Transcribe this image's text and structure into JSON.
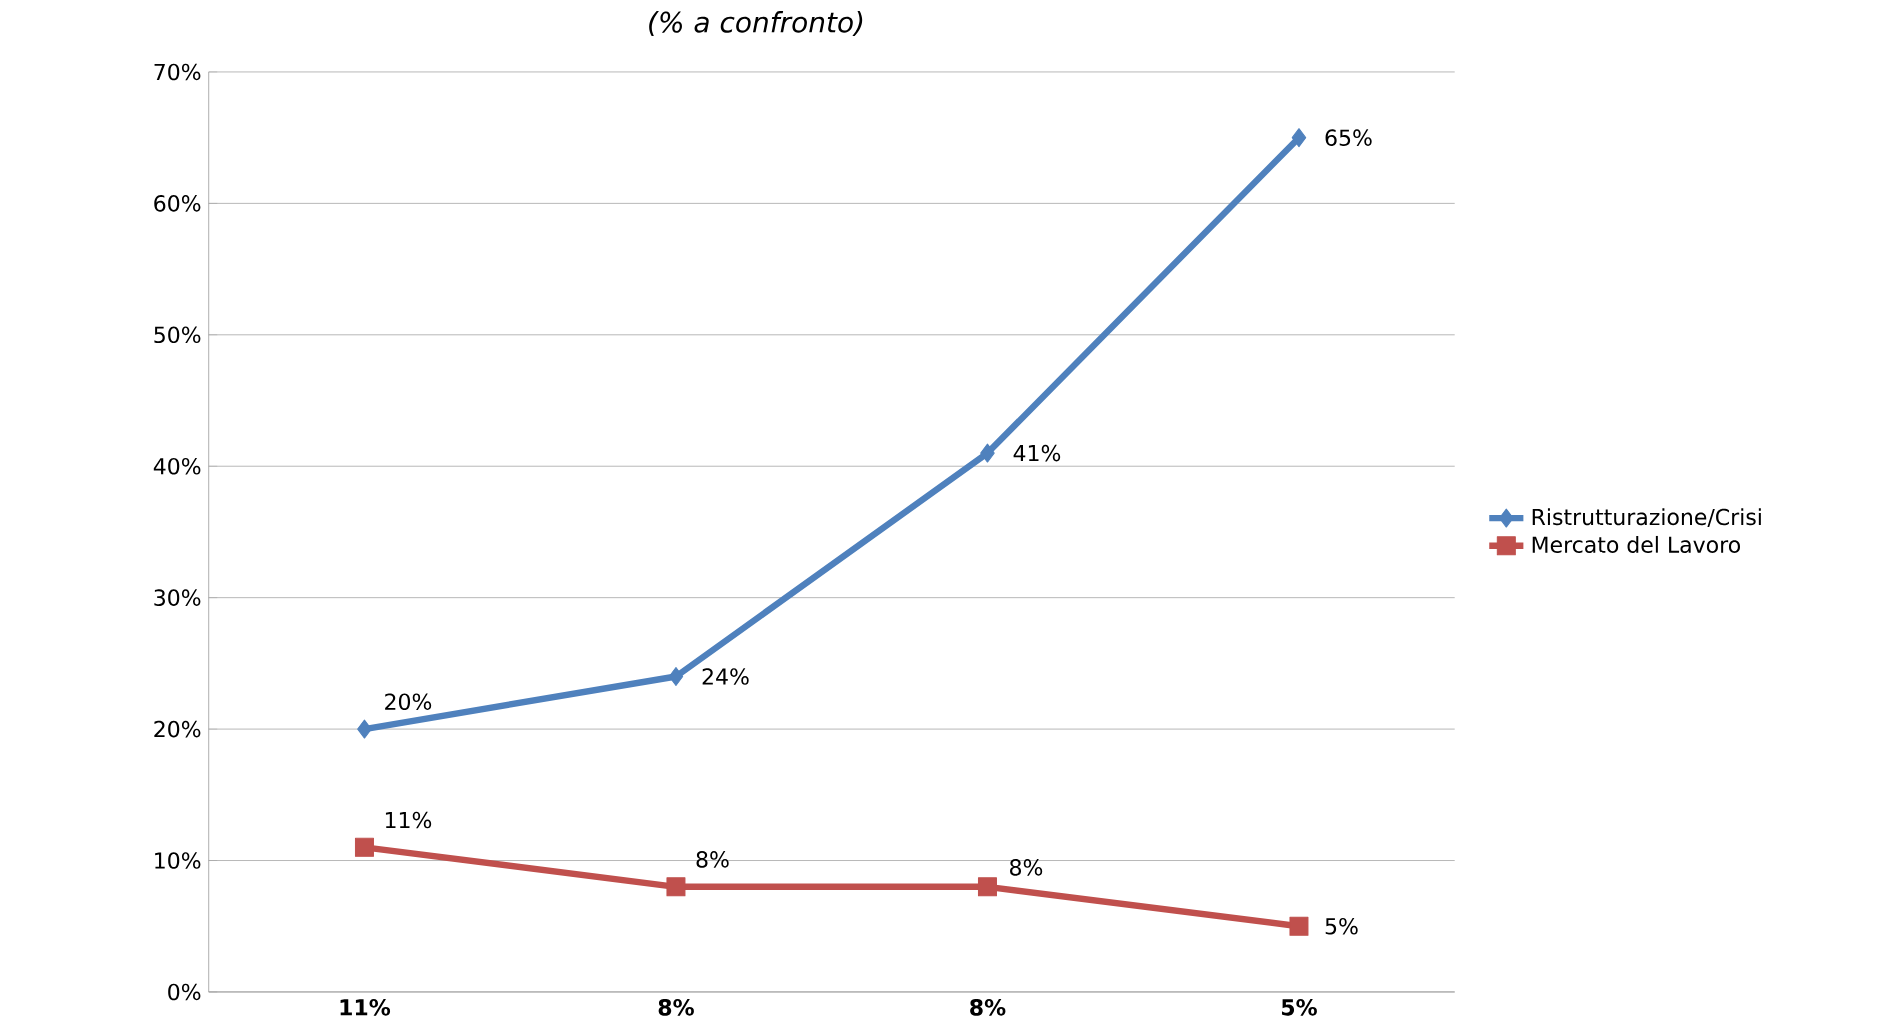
{
  "chart_data": {
    "type": "line",
    "subtitle": "(% a confronto)",
    "categories": [
      "11%",
      "8%",
      "8%",
      "5%"
    ],
    "series": [
      {
        "name": "Ristrutturazione/Crisi",
        "color": "#4f81bd",
        "marker": "diamond",
        "values": [
          20,
          24,
          41,
          65
        ],
        "value_labels": [
          "20%",
          "24%",
          "41%",
          "65%"
        ]
      },
      {
        "name": "Mercato del Lavoro",
        "color": "#c0504d",
        "marker": "square",
        "values": [
          11,
          8,
          8,
          5
        ],
        "value_labels": [
          "11%",
          "8%",
          "8%",
          "5%"
        ]
      }
    ],
    "ylim": [
      0,
      70
    ],
    "yticks": [
      {
        "value": 0,
        "label": "0%"
      },
      {
        "value": 10,
        "label": "10%"
      },
      {
        "value": 20,
        "label": "20%"
      },
      {
        "value": 30,
        "label": "30%"
      },
      {
        "value": 40,
        "label": "40%"
      },
      {
        "value": 50,
        "label": "50%"
      },
      {
        "value": 60,
        "label": "60%"
      },
      {
        "value": 70,
        "label": "70%"
      }
    ],
    "grid": "y",
    "legend": "right"
  }
}
